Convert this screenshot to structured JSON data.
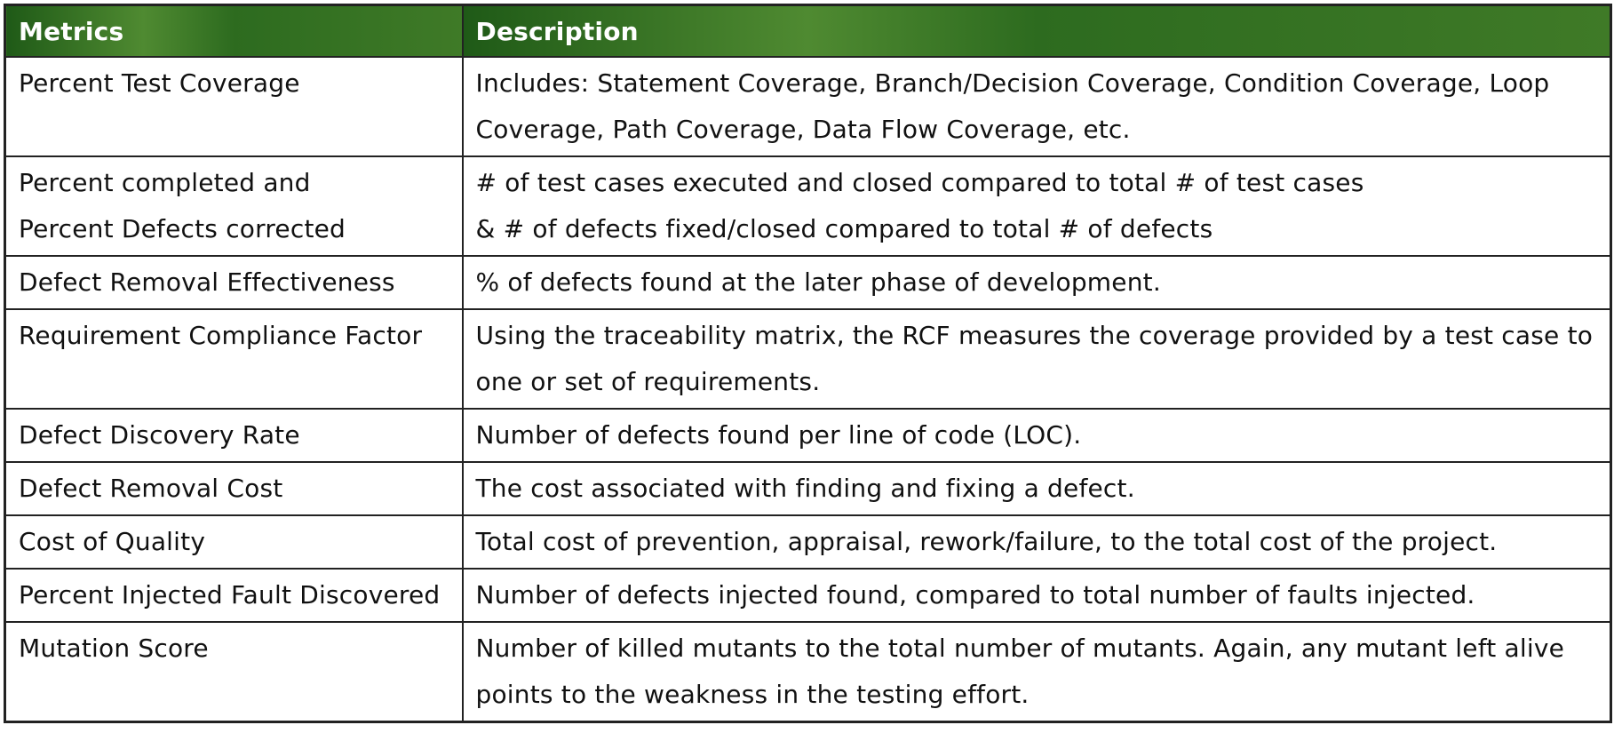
{
  "table": {
    "headers": [
      "Metrics",
      "Description"
    ],
    "rows": [
      {
        "metric": [
          "Percent Test Coverage"
        ],
        "description": [
          "Includes: Statement Coverage, Branch/Decision Coverage, Condition Coverage, Loop",
          "Coverage, Path Coverage, Data Flow Coverage, etc."
        ]
      },
      {
        "metric": [
          "Percent completed and",
          "Percent Defects corrected"
        ],
        "description": [
          "# of test cases executed and closed compared to total # of test cases",
          "& # of defects fixed/closed compared to total # of defects"
        ]
      },
      {
        "metric": [
          "Defect Removal Effectiveness"
        ],
        "description": [
          "% of defects found at the later phase of development."
        ]
      },
      {
        "metric": [
          "Requirement Compliance Factor"
        ],
        "description": [
          "Using the traceability matrix, the RCF measures the coverage provided by a test case to",
          "one or set of requirements."
        ]
      },
      {
        "metric": [
          "Defect Discovery Rate"
        ],
        "description": [
          "Number of defects found per line of code (LOC)."
        ]
      },
      {
        "metric": [
          "Defect Removal Cost"
        ],
        "description": [
          "The cost associated with finding and fixing a defect."
        ]
      },
      {
        "metric": [
          "Cost of Quality"
        ],
        "description": [
          "Total cost of prevention, appraisal, rework/failure, to the total cost of the project."
        ]
      },
      {
        "metric": [
          "Percent Injected Fault Discovered"
        ],
        "description": [
          "Number of defects injected found, compared to total number of faults injected."
        ]
      },
      {
        "metric": [
          "Mutation Score"
        ],
        "description": [
          "Number of killed mutants to the total number of mutants.  Again, any mutant left alive",
          "points to the weakness in the testing effort."
        ]
      }
    ]
  },
  "colors": {
    "header_dark": "#1f5a17",
    "header_light": "#4f8a31",
    "header_text": "#ffffff",
    "border": "#222222"
  }
}
